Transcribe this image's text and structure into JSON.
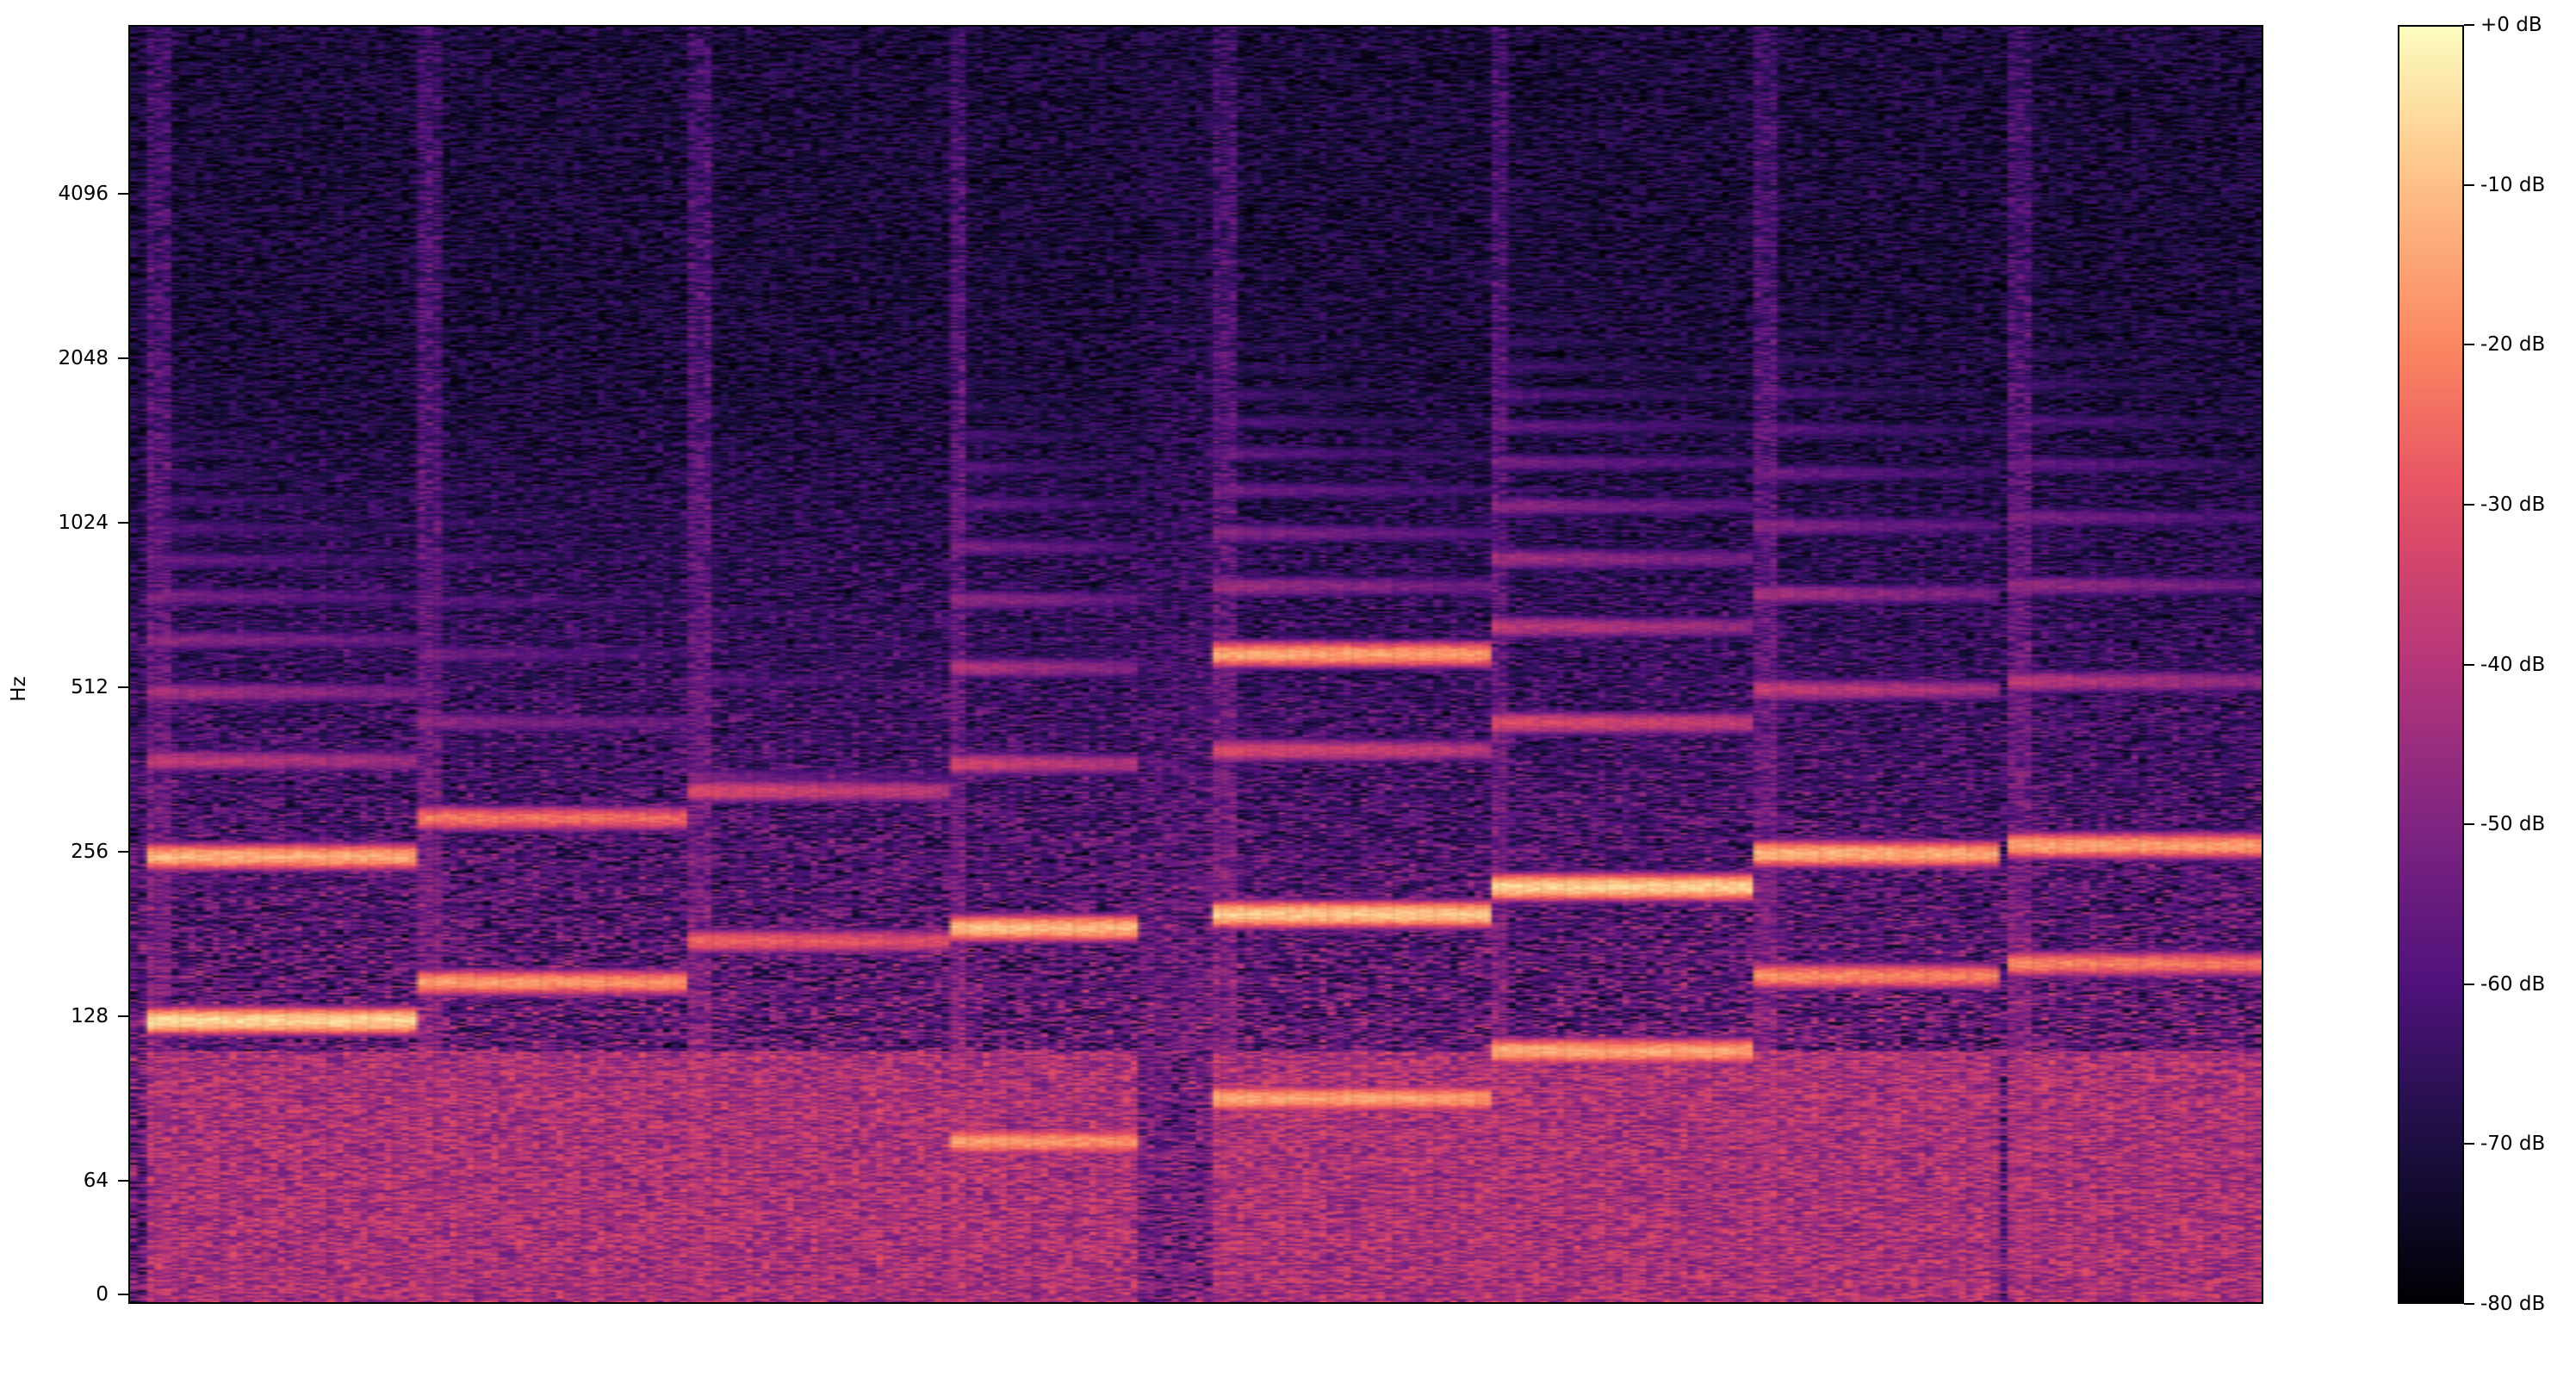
{
  "chart_data": {
    "type": "heatmap",
    "title": "",
    "xlabel": "",
    "ylabel": "Hz",
    "y_scale": "symlog",
    "y_ticks": [
      0,
      64,
      128,
      256,
      512,
      1024,
      2048,
      4096
    ],
    "y_tick_labels": [
      "0",
      "64",
      "128",
      "256",
      "512",
      "1024",
      "2048",
      "4096"
    ],
    "ylim": [
      0,
      8300
    ],
    "colormap": "magma",
    "colorbar": {
      "range_db": [
        -80,
        0
      ],
      "ticks": [
        0,
        -10,
        -20,
        -30,
        -40,
        -50,
        -60,
        -70,
        -80
      ],
      "tick_labels": [
        "+0 dB",
        "-10 dB",
        "-20 dB",
        "-30 dB",
        "-40 dB",
        "-50 dB",
        "-60 dB",
        "-70 dB",
        "-80 dB"
      ]
    },
    "x_ticks_shown": false,
    "notes": [
      {
        "onset": 0.009,
        "offset": 0.134,
        "f0_hz": 125,
        "peak_db": -2,
        "extra_bands_hz": [
          250
        ]
      },
      {
        "onset": 0.136,
        "offset": 0.262,
        "f0_hz": 147,
        "peak_db": -12,
        "extra_bands_hz": [
          294
        ]
      },
      {
        "onset": 0.262,
        "offset": 0.385,
        "f0_hz": 175,
        "peak_db": -22,
        "extra_bands_hz": [
          330
        ]
      },
      {
        "onset": 0.385,
        "offset": 0.475,
        "f0_hz": 185,
        "peak_db": -6,
        "extra_bands_hz": [
          75
        ]
      },
      {
        "onset": 0.475,
        "offset": 0.509,
        "f0_hz": 0,
        "peak_db": -45,
        "extra_bands_hz": []
      },
      {
        "onset": 0.509,
        "offset": 0.638,
        "f0_hz": 196,
        "peak_db": -4,
        "extra_bands_hz": [
          90,
          588
        ]
      },
      {
        "onset": 0.638,
        "offset": 0.762,
        "f0_hz": 220,
        "peak_db": -3,
        "extra_bands_hz": [
          110
        ]
      },
      {
        "onset": 0.762,
        "offset": 0.877,
        "f0_hz": 253,
        "peak_db": -8,
        "extra_bands_hz": [
          151
        ]
      },
      {
        "onset": 0.881,
        "offset": 1.0,
        "f0_hz": 262,
        "peak_db": -10,
        "extra_bands_hz": [
          159
        ]
      }
    ]
  }
}
